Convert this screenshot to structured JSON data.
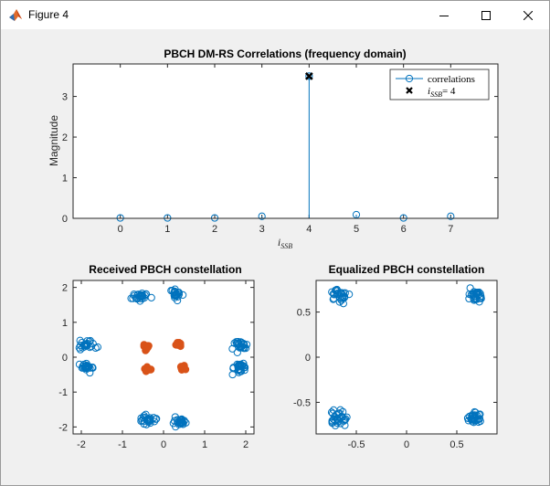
{
  "window": {
    "title": "Figure 4",
    "icon": "matlab-icon",
    "controls": [
      "minimize-icon",
      "maximize-icon",
      "close-icon"
    ]
  },
  "chart_data": [
    {
      "type": "stem",
      "title": "PBCH DM-RS Correlations (frequency domain)",
      "xlabel": "ī_SSB",
      "ylabel": "Magnitude",
      "xlim": [
        -1,
        8
      ],
      "ylim": [
        0,
        3.8
      ],
      "xticks": [
        "0",
        "1",
        "2",
        "3",
        "4",
        "5",
        "6",
        "7"
      ],
      "yticks": [
        "0",
        "1",
        "2",
        "3"
      ],
      "series": [
        {
          "name": "correlations",
          "x": [
            0,
            1,
            2,
            3,
            4,
            5,
            6,
            7
          ],
          "values": [
            0.01,
            0.01,
            0.01,
            0.05,
            3.5,
            0.09,
            0.01,
            0.05
          ],
          "color": "#0072BD",
          "marker": "circle"
        }
      ],
      "marker_points": [
        {
          "name": "ī_SSB = 4",
          "x": 4,
          "y": 3.5,
          "color": "#000000",
          "marker": "x"
        }
      ],
      "legend": {
        "location": "top-right",
        "entries": [
          "correlations",
          "ī_SSB = 4"
        ]
      },
      "legend_parts": {
        "subscript": "SSB",
        "eq": "= 4"
      }
    },
    {
      "type": "scatter",
      "title": "Received PBCH constellation",
      "xlim": [
        -2.2,
        2.2
      ],
      "ylim": [
        -2.2,
        2.2
      ],
      "xticks": [
        "-2",
        "-1",
        "0",
        "1",
        "2"
      ],
      "yticks": [
        "-2",
        "-1",
        "0",
        "1",
        "2"
      ],
      "series": [
        {
          "name": "",
          "color": "#0072BD",
          "marker": "circle-open",
          "clusters": [
            {
              "x": -0.55,
              "y": 1.75
            },
            {
              "x": 0.3,
              "y": 1.8
            },
            {
              "x": -0.4,
              "y": -1.8
            },
            {
              "x": 0.4,
              "y": -1.8
            },
            {
              "x": -1.85,
              "y": 0.35
            },
            {
              "x": -1.85,
              "y": -0.3
            },
            {
              "x": 1.85,
              "y": 0.35
            },
            {
              "x": 1.85,
              "y": -0.3
            }
          ]
        },
        {
          "name": "",
          "color": "#D95319",
          "marker": "circle-filled",
          "clusters": [
            {
              "x": -0.4,
              "y": 0.3
            },
            {
              "x": 0.35,
              "y": 0.35
            },
            {
              "x": -0.35,
              "y": -0.35
            },
            {
              "x": 0.45,
              "y": -0.3
            }
          ]
        }
      ]
    },
    {
      "type": "scatter",
      "title": "Equalized PBCH constellation",
      "xlim": [
        -0.9,
        0.9
      ],
      "ylim": [
        -0.85,
        0.85
      ],
      "xticks": [
        "-0.5",
        "0",
        "0.5"
      ],
      "yticks": [
        "-0.5",
        "0",
        "0.5"
      ],
      "series": [
        {
          "name": "",
          "color": "#0072BD",
          "marker": "circle-open",
          "clusters": [
            {
              "x": -0.68,
              "y": 0.68
            },
            {
              "x": 0.68,
              "y": 0.68
            },
            {
              "x": -0.68,
              "y": -0.68
            },
            {
              "x": 0.68,
              "y": -0.68
            }
          ]
        }
      ]
    }
  ]
}
